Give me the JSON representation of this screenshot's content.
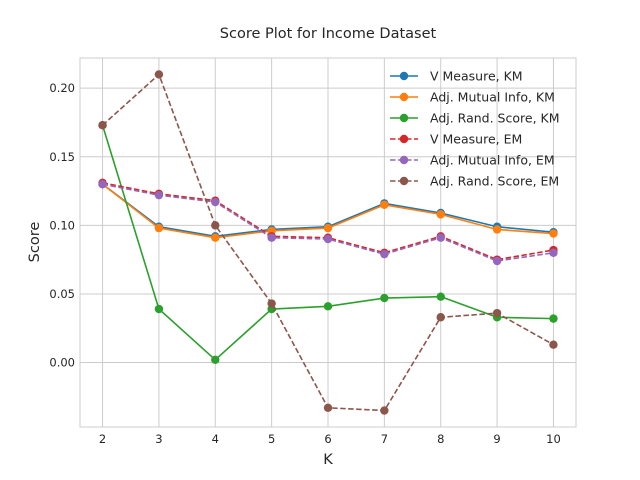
{
  "chart_data": {
    "type": "line",
    "title": "Score Plot for Income Dataset",
    "xlabel": "K",
    "ylabel": "Score",
    "x": [
      2,
      3,
      4,
      5,
      6,
      7,
      8,
      9,
      10
    ],
    "xticks": [
      "2",
      "3",
      "4",
      "5",
      "6",
      "7",
      "8",
      "9",
      "10"
    ],
    "yticks": [
      "0.00",
      "0.05",
      "0.10",
      "0.15",
      "0.20"
    ],
    "ytick_values": [
      0.0,
      0.05,
      0.1,
      0.15,
      0.2
    ],
    "xlim": [
      1.6,
      10.4
    ],
    "ylim": [
      -0.047,
      0.222
    ],
    "grid": true,
    "legend_position": "top-right",
    "series": [
      {
        "name": "V Measure, KM",
        "color": "#1f77b4",
        "dashed": false,
        "values": [
          0.13,
          0.099,
          0.092,
          0.097,
          0.099,
          0.116,
          0.109,
          0.099,
          0.095
        ]
      },
      {
        "name": "Adj. Mutual Info, KM",
        "color": "#ff7f0e",
        "dashed": false,
        "values": [
          0.13,
          0.098,
          0.091,
          0.096,
          0.098,
          0.115,
          0.108,
          0.097,
          0.094
        ]
      },
      {
        "name": "Adj. Rand. Score, KM",
        "color": "#2ca02c",
        "dashed": false,
        "values": [
          0.173,
          0.039,
          0.002,
          0.039,
          0.041,
          0.047,
          0.048,
          0.033,
          0.032
        ]
      },
      {
        "name": "V Measure, EM",
        "color": "#d62728",
        "dashed": true,
        "values": [
          0.131,
          0.123,
          0.118,
          0.092,
          0.091,
          0.08,
          0.092,
          0.075,
          0.082
        ]
      },
      {
        "name": "Adj. Mutual Info, EM",
        "color": "#9467bd",
        "dashed": true,
        "values": [
          0.13,
          0.122,
          0.117,
          0.091,
          0.09,
          0.079,
          0.091,
          0.074,
          0.08
        ]
      },
      {
        "name": "Adj. Rand. Score, EM",
        "color": "#8c564b",
        "dashed": true,
        "values": [
          0.173,
          0.21,
          0.1,
          0.043,
          -0.033,
          -0.035,
          0.033,
          0.036,
          0.013
        ]
      }
    ]
  }
}
